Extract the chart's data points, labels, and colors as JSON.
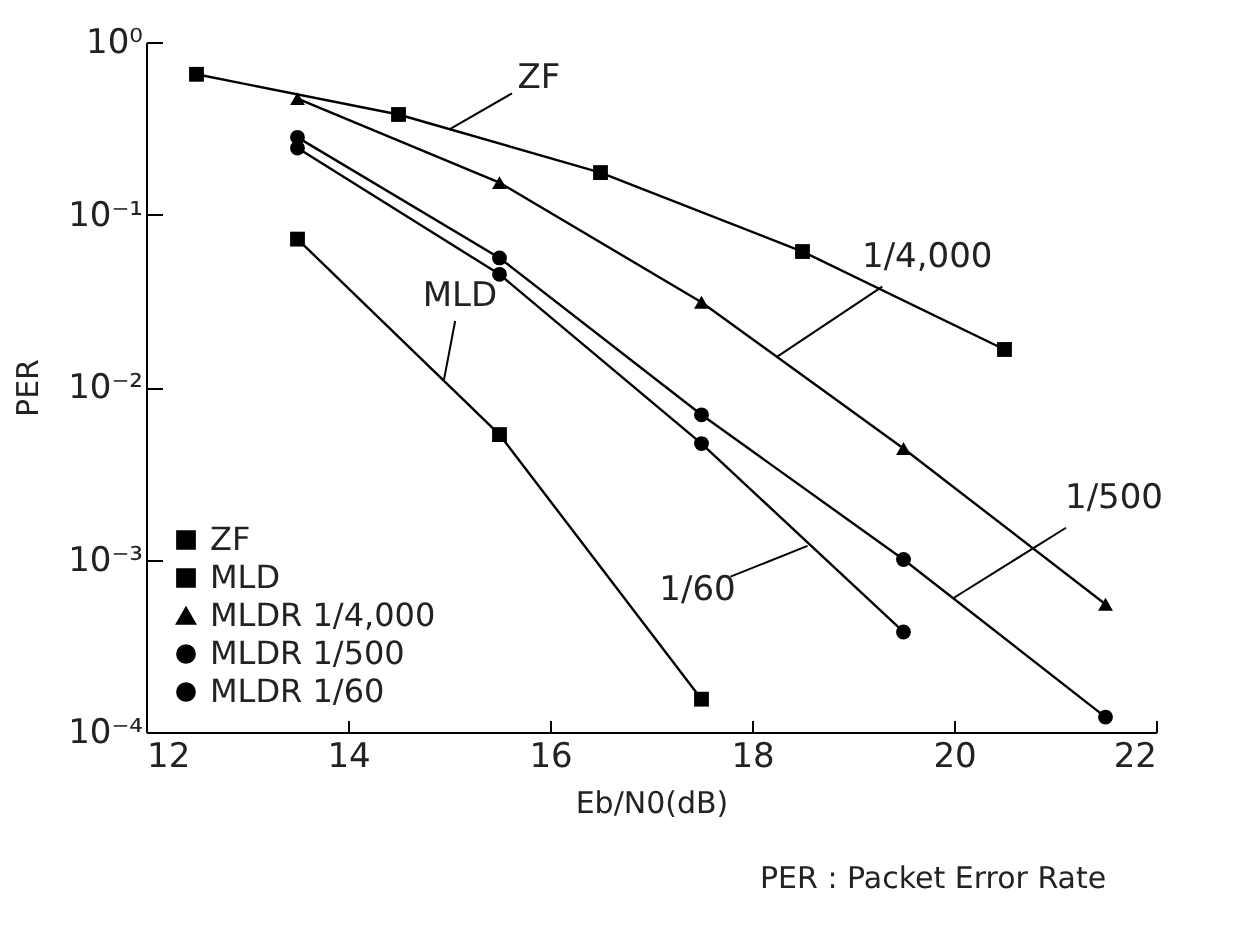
{
  "chart_data": {
    "type": "line",
    "xlabel": "Eb/N0(dB)",
    "ylabel": "PER",
    "log": true,
    "xlim": [
      12,
      22
    ],
    "xticks": [
      12,
      14,
      16,
      18,
      20,
      22
    ],
    "ylim": [
      0.0001,
      1
    ],
    "yticks": [
      {
        "value": 1,
        "label": "10⁰"
      },
      {
        "value": 0.1,
        "label": "10⁻¹"
      },
      {
        "value": 0.01,
        "label": "10⁻²"
      },
      {
        "value": 0.001,
        "label": "10⁻³"
      },
      {
        "value": 0.0001,
        "label": "10⁻⁴"
      }
    ],
    "grid": false,
    "legend": "bottom left",
    "line_style": "solid",
    "series": [
      {
        "name": "ZF",
        "color": "#000000",
        "marker": "square",
        "x": [
          12.5,
          14.5,
          16.5,
          18.5,
          20.5
        ],
        "values": [
          0.65,
          0.38,
          0.175,
          0.061,
          0.0165
        ]
      },
      {
        "name": "MLD",
        "color": "#000000",
        "marker": "square",
        "x": [
          13.5,
          15.5,
          17.5
        ],
        "values": [
          0.072,
          0.0053,
          0.000155
        ]
      },
      {
        "name": "MLDR 1/4,000",
        "color": "#000000",
        "marker": "triangle",
        "x": [
          13.5,
          15.5,
          17.5,
          19.5,
          21.5
        ],
        "values": [
          0.47,
          0.153,
          0.031,
          0.0044,
          0.00055
        ]
      },
      {
        "name": "MLDR 1/500",
        "color": "#000000",
        "marker": "circle",
        "x": [
          13.5,
          15.5,
          17.5,
          19.5,
          21.5
        ],
        "values": [
          0.28,
          0.056,
          0.0069,
          0.001,
          0.000122
        ]
      },
      {
        "name": "MLDR 1/60",
        "color": "#000000",
        "marker": "circle",
        "x": [
          13.5,
          15.5,
          17.5,
          19.5
        ],
        "values": [
          0.243,
          0.045,
          0.0047,
          0.00038
        ]
      }
    ],
    "annotations": [
      {
        "text": "ZF",
        "x": 15.0,
        "y": 0.31
      },
      {
        "text": "1/4,000",
        "x": 18.25,
        "y": 0.015
      },
      {
        "text": "1/500",
        "x": 20.0,
        "y": 0.0006
      },
      {
        "text": "1/60",
        "x": 18.55,
        "y": 0.0012
      },
      {
        "text": "MLD",
        "x": 14.95,
        "y": 0.011
      },
      "PER : Packet Error Rate"
    ]
  }
}
